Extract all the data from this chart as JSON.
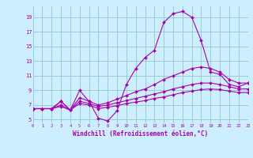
{
  "xlabel": "Windchill (Refroidissement éolien,°C)",
  "bg_color": "#cceeff",
  "line_color": "#aa00aa",
  "grid_color": "#99cccc",
  "xmin": 0,
  "xmax": 23,
  "ymin": 4.5,
  "ymax": 20.5,
  "yticks": [
    5,
    7,
    9,
    11,
    13,
    15,
    17,
    19
  ],
  "xticks": [
    0,
    1,
    2,
    3,
    4,
    5,
    6,
    7,
    8,
    9,
    10,
    11,
    12,
    13,
    14,
    15,
    16,
    17,
    18,
    19,
    20,
    21,
    22,
    23
  ],
  "series": [
    {
      "x": [
        0,
        1,
        2,
        3,
        4,
        5,
        6,
        7,
        8,
        9,
        10,
        11,
        12,
        13,
        14,
        15,
        16,
        17,
        18,
        19,
        20,
        21,
        22,
        23
      ],
      "y": [
        6.5,
        6.5,
        6.5,
        7.5,
        6.3,
        9.0,
        7.5,
        5.2,
        4.8,
        6.2,
        9.8,
        12.0,
        13.5,
        14.5,
        18.3,
        19.5,
        19.8,
        19.0,
        15.8,
        11.5,
        11.2,
        9.8,
        9.5,
        10.0
      ]
    },
    {
      "x": [
        0,
        1,
        2,
        3,
        4,
        5,
        6,
        7,
        8,
        9,
        10,
        11,
        12,
        13,
        14,
        15,
        16,
        17,
        18,
        19,
        20,
        21,
        22,
        23
      ],
      "y": [
        6.5,
        6.5,
        6.5,
        7.5,
        6.3,
        8.0,
        7.5,
        7.0,
        7.3,
        7.8,
        8.3,
        8.8,
        9.2,
        9.8,
        10.5,
        11.0,
        11.5,
        12.0,
        12.2,
        12.0,
        11.5,
        10.5,
        10.0,
        10.0
      ]
    },
    {
      "x": [
        0,
        1,
        2,
        3,
        4,
        5,
        6,
        7,
        8,
        9,
        10,
        11,
        12,
        13,
        14,
        15,
        16,
        17,
        18,
        19,
        20,
        21,
        22,
        23
      ],
      "y": [
        6.5,
        6.5,
        6.5,
        7.0,
        6.3,
        7.5,
        7.2,
        6.8,
        7.0,
        7.3,
        7.6,
        7.9,
        8.2,
        8.5,
        8.8,
        9.2,
        9.5,
        9.8,
        10.0,
        10.0,
        9.8,
        9.5,
        9.2,
        9.2
      ]
    },
    {
      "x": [
        0,
        1,
        2,
        3,
        4,
        5,
        6,
        7,
        8,
        9,
        10,
        11,
        12,
        13,
        14,
        15,
        16,
        17,
        18,
        19,
        20,
        21,
        22,
        23
      ],
      "y": [
        6.5,
        6.5,
        6.5,
        6.8,
        6.3,
        7.2,
        7.0,
        6.5,
        6.7,
        6.9,
        7.2,
        7.4,
        7.6,
        7.9,
        8.1,
        8.4,
        8.7,
        8.9,
        9.1,
        9.2,
        9.1,
        8.9,
        8.7,
        8.7
      ]
    }
  ]
}
